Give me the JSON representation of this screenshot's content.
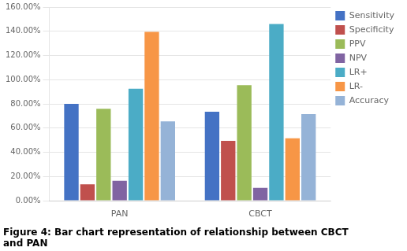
{
  "chart_data": {
    "type": "bar",
    "title": "Figure 4: Bar chart representation of relationship between CBCT\nand PAN",
    "categories": [
      "PAN",
      "CBCT"
    ],
    "series": [
      {
        "name": "Sensitivity",
        "color": "#4472C4",
        "values": [
          0.8,
          0.735
        ]
      },
      {
        "name": "Specificity",
        "color": "#C0504D",
        "values": [
          0.135,
          0.495
        ]
      },
      {
        "name": "PPV",
        "color": "#9BBB59",
        "values": [
          0.76,
          0.955
        ]
      },
      {
        "name": "NPV",
        "color": "#8064A2",
        "values": [
          0.165,
          0.105
        ]
      },
      {
        "name": "LR+",
        "color": "#4BACC6",
        "values": [
          0.925,
          1.46
        ]
      },
      {
        "name": "LR-",
        "color": "#F79646",
        "values": [
          1.395,
          0.515
        ]
      },
      {
        "name": "Accuracy",
        "color": "#95B3D7",
        "values": [
          0.655,
          0.715
        ]
      }
    ],
    "ylim": [
      0,
      1.6
    ],
    "yticks": [
      {
        "value": 0.0,
        "label": "0.00%"
      },
      {
        "value": 0.2,
        "label": "20.00%"
      },
      {
        "value": 0.4,
        "label": "40.00%"
      },
      {
        "value": 0.6,
        "label": "60.00%"
      },
      {
        "value": 0.8,
        "label": "80.00%"
      },
      {
        "value": 1.0,
        "label": "100.00%"
      },
      {
        "value": 1.2,
        "label": "120.00%"
      },
      {
        "value": 1.4,
        "label": "140.00%"
      },
      {
        "value": 1.6,
        "label": "160.00%"
      }
    ],
    "grid": true,
    "legend": "right"
  }
}
